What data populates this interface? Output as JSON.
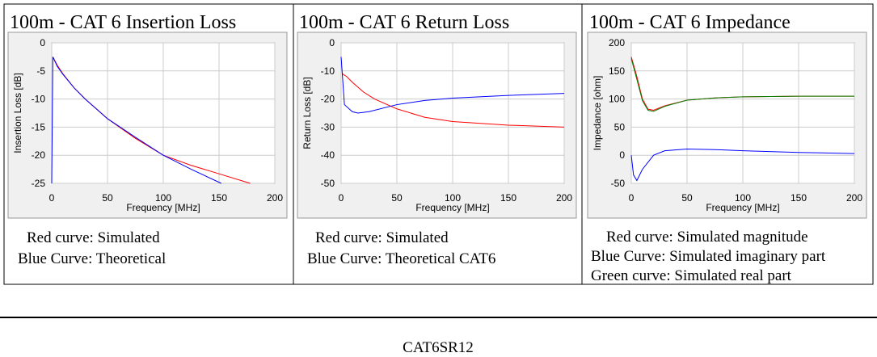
{
  "chart_data": [
    {
      "type": "line",
      "title": "100m - CAT 6 Insertion Loss",
      "x_label": "Frequency [MHz]",
      "y_label": "Insertion Loss [dB]",
      "xlim": [
        0,
        200
      ],
      "xticks": [
        0,
        50,
        100,
        150,
        200
      ],
      "ylim": [
        -25,
        0
      ],
      "yticks": [
        0,
        -5,
        -10,
        -15,
        -20,
        -25
      ],
      "grid": true,
      "series": [
        {
          "name": "Simulated",
          "color": "#ff0000",
          "x": [
            1,
            5,
            10,
            20,
            30,
            50,
            75,
            100,
            125,
            150,
            178
          ],
          "values": [
            -2.5,
            -4,
            -5.5,
            -8,
            -10,
            -13.5,
            -17,
            -20,
            -21.8,
            -23.3,
            -25
          ]
        },
        {
          "name": "Theoretical",
          "color": "#0000ff",
          "x": [
            0,
            1,
            5,
            10,
            20,
            30,
            50,
            75,
            100,
            125,
            152
          ],
          "values": [
            -25,
            -2.5,
            -4.2,
            -5.6,
            -8,
            -10,
            -13.5,
            -16.8,
            -20,
            -22.5,
            -25
          ]
        }
      ],
      "captions": [
        "Red curve: Simulated",
        "Blue Curve: Theoretical"
      ]
    },
    {
      "type": "line",
      "title": "100m - CAT 6 Return Loss",
      "x_label": "Frequency [MHz]",
      "y_label": "Return Loss [dB]",
      "xlim": [
        0,
        200
      ],
      "xticks": [
        0,
        50,
        100,
        150,
        200
      ],
      "ylim": [
        -50,
        0
      ],
      "yticks": [
        0,
        -10,
        -20,
        -30,
        -40,
        -50
      ],
      "grid": true,
      "series": [
        {
          "name": "Simulated",
          "color": "#ff0000",
          "x": [
            1,
            5,
            10,
            20,
            30,
            50,
            75,
            100,
            150,
            200
          ],
          "values": [
            -11,
            -12,
            -14,
            -17.5,
            -20,
            -23.5,
            -26.5,
            -28,
            -29.3,
            -30
          ]
        },
        {
          "name": "Theoretical CAT6",
          "color": "#0000ff",
          "x": [
            0,
            3,
            10,
            15,
            25,
            50,
            75,
            100,
            150,
            200
          ],
          "values": [
            -5,
            -22,
            -24.5,
            -25,
            -24.5,
            -22,
            -20.5,
            -19.7,
            -18.7,
            -18
          ]
        }
      ],
      "captions": [
        "Red curve: Simulated",
        "Blue Curve: Theoretical CAT6"
      ]
    },
    {
      "type": "line",
      "title": "100m - CAT 6 Impedance",
      "x_label": "Frequency [MHz]",
      "y_label": "Impedance [ohm]",
      "xlim": [
        0,
        200
      ],
      "xticks": [
        0,
        50,
        100,
        150,
        200
      ],
      "ylim": [
        -50,
        200
      ],
      "yticks": [
        200,
        150,
        100,
        50,
        0,
        -50
      ],
      "grid": true,
      "series": [
        {
          "name": "Simulated magnitude",
          "color": "#ff0000",
          "x": [
            0,
            5,
            10,
            15,
            20,
            30,
            50,
            75,
            100,
            150,
            200
          ],
          "values": [
            175,
            140,
            100,
            82,
            80,
            88,
            98,
            102,
            104,
            105,
            105
          ]
        },
        {
          "name": "Simulated real part",
          "color": "#008000",
          "x": [
            0,
            5,
            10,
            15,
            20,
            30,
            50,
            75,
            100,
            150,
            200
          ],
          "values": [
            172,
            135,
            97,
            80,
            78,
            87,
            98,
            102,
            104,
            105,
            105
          ]
        },
        {
          "name": "Simulated imaginary part",
          "color": "#0000ff",
          "x": [
            0,
            2,
            5,
            10,
            20,
            30,
            50,
            75,
            100,
            150,
            200
          ],
          "values": [
            0,
            -35,
            -45,
            -25,
            0,
            8,
            11,
            10,
            8,
            5,
            3
          ]
        }
      ],
      "captions": [
        "Red curve: Simulated magnitude",
        "Blue Curve: Simulated imaginary part",
        "Green curve: Simulated real part"
      ]
    }
  ],
  "footer": "CAT6SR12"
}
